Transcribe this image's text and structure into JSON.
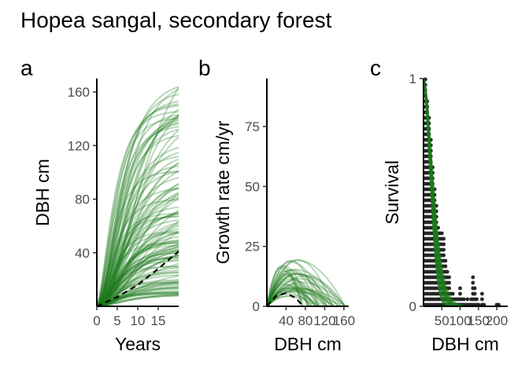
{
  "figure": {
    "title": "Hopea sangal, secondary forest"
  },
  "colors": {
    "curve": "#1e7b1e",
    "median": "#000000",
    "dots": "#262626"
  },
  "chart_data": [
    {
      "panel": "a",
      "type": "line",
      "xlabel": "Years",
      "ylabel": "DBH cm",
      "xticks": [
        0,
        5,
        10,
        15
      ],
      "yticks": [
        40,
        80,
        120,
        160
      ],
      "xlim": [
        0,
        20
      ],
      "ylim": [
        0,
        170
      ],
      "curve_count": 120,
      "curve_final_dbh_range": [
        8,
        168
      ],
      "median_curve": {
        "x": [
          0,
          5,
          10,
          15,
          20
        ],
        "y": [
          0,
          7,
          16,
          28,
          41
        ]
      }
    },
    {
      "panel": "b",
      "type": "line",
      "xlabel": "DBH cm",
      "ylabel": "Growth rate cm/yr",
      "xticks": [
        40,
        80,
        120,
        160
      ],
      "tick_labels": [
        "40",
        "80",
        "120",
        "160"
      ],
      "yticks": [
        0,
        25,
        50,
        75
      ],
      "xlim": [
        0,
        170
      ],
      "ylim": [
        0,
        95
      ],
      "curve_count": 40,
      "curve_peak_range": [
        4,
        20
      ],
      "median_curve": {
        "x": [
          0,
          20,
          40,
          60,
          75
        ],
        "y": [
          0,
          4.5,
          5.5,
          3.5,
          0
        ]
      }
    },
    {
      "panel": "c",
      "type": "scatter",
      "xlabel": "DBH cm",
      "ylabel": "Survival",
      "xticks": [
        50,
        100,
        150,
        200
      ],
      "tick_labels": [
        "50",
        "100",
        "150",
        "200"
      ],
      "yticks": [
        0,
        1
      ],
      "xlim": [
        0,
        230
      ],
      "ylim": [
        0,
        1
      ],
      "dot_columns": [
        {
          "x": 5,
          "top": 1.0
        },
        {
          "x": 10,
          "top": 0.92
        },
        {
          "x": 15,
          "top": 0.84
        },
        {
          "x": 20,
          "top": 0.75
        },
        {
          "x": 25,
          "top": 0.63
        },
        {
          "x": 30,
          "top": 0.52
        },
        {
          "x": 35,
          "top": 0.46
        },
        {
          "x": 40,
          "top": 0.36
        },
        {
          "x": 45,
          "top": 0.34
        },
        {
          "x": 50,
          "top": 0.32
        },
        {
          "x": 55,
          "top": 0.31
        },
        {
          "x": 60,
          "top": 0.22
        },
        {
          "x": 65,
          "top": 0.16
        },
        {
          "x": 70,
          "top": 0.14
        },
        {
          "x": 75,
          "top": 0.07
        },
        {
          "x": 80,
          "top": 0.06
        },
        {
          "x": 85,
          "top": 0.04
        },
        {
          "x": 90,
          "top": 0.03
        },
        {
          "x": 95,
          "top": 0.04
        },
        {
          "x": 100,
          "top": 0.08
        },
        {
          "x": 105,
          "top": 0.05
        },
        {
          "x": 110,
          "top": 0.03
        },
        {
          "x": 115,
          "top": 0.02
        },
        {
          "x": 120,
          "top": 0.05
        },
        {
          "x": 125,
          "top": 0.02
        },
        {
          "x": 130,
          "top": 0.04
        },
        {
          "x": 135,
          "top": 0.14
        },
        {
          "x": 140,
          "top": 0.08
        },
        {
          "x": 145,
          "top": 0.03
        },
        {
          "x": 150,
          "top": 0.02
        },
        {
          "x": 160,
          "top": 0.06
        },
        {
          "x": 165,
          "top": 0.02
        },
        {
          "x": 200,
          "top": 0.02
        },
        {
          "x": 205,
          "top": 0.01
        }
      ],
      "curve_count": 30
    }
  ]
}
